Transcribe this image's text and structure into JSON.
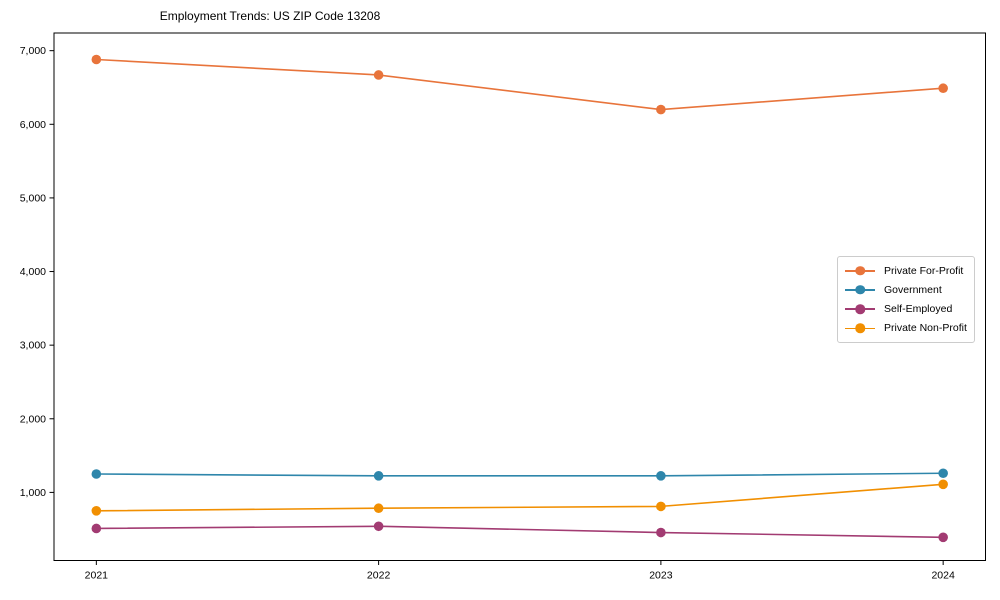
{
  "chart_data": {
    "type": "line",
    "title": "Employment Trends: US ZIP Code 13208",
    "xlabel": "",
    "ylabel": "",
    "x": [
      2021,
      2022,
      2023,
      2024
    ],
    "xtick_labels": [
      "2021",
      "2022",
      "2023",
      "2024"
    ],
    "yticks": [
      1000,
      2000,
      3000,
      4000,
      5000,
      6000,
      7000
    ],
    "ytick_labels": [
      "1,000",
      "2,000",
      "3,000",
      "4,000",
      "5,000",
      "6,000",
      "7,000"
    ],
    "xlim": [
      2020.85,
      2024.15
    ],
    "ylim": [
      75,
      7240
    ],
    "grid": false,
    "legend_position": "center-right",
    "axis_color": "#000000",
    "background_color": "#ffffff",
    "series": [
      {
        "name": "Private For-Profit",
        "color": "#e8743b",
        "values": [
          6880,
          6670,
          6200,
          6490
        ]
      },
      {
        "name": "Government",
        "color": "#2e86ab",
        "values": [
          1250,
          1225,
          1225,
          1260
        ]
      },
      {
        "name": "Self-Employed",
        "color": "#a23b72",
        "values": [
          510,
          540,
          455,
          390
        ]
      },
      {
        "name": "Private Non-Profit",
        "color": "#f18f01",
        "values": [
          750,
          785,
          810,
          1110
        ]
      }
    ]
  }
}
